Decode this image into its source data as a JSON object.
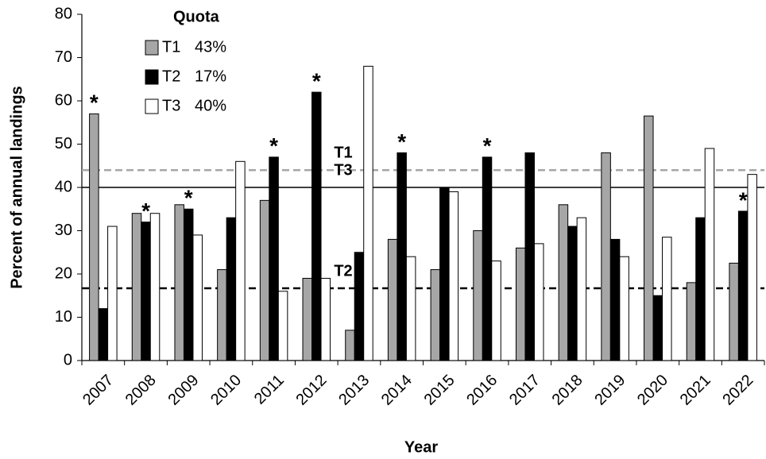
{
  "chart_data": {
    "type": "bar",
    "y_label": "Percent of annual landings",
    "x_label": "Year",
    "legend_title": "Quota",
    "categories": [
      "2007",
      "2008",
      "2009",
      "2010",
      "2011",
      "2012",
      "2013",
      "2014",
      "2015",
      "2016",
      "2017",
      "2018",
      "2019",
      "2020",
      "2021",
      "2022"
    ],
    "series": [
      {
        "name": "T1",
        "quota": "43%",
        "color": "#a6a6a6",
        "values": [
          57,
          34,
          36,
          21,
          37,
          19,
          7,
          28,
          21,
          30,
          26,
          36,
          48,
          56.5,
          18,
          22.5
        ],
        "annotations": [
          "*",
          null,
          null,
          null,
          null,
          null,
          null,
          null,
          null,
          null,
          null,
          null,
          null,
          null,
          null,
          null
        ]
      },
      {
        "name": "T2",
        "quota": "17%",
        "color": "#000000",
        "values": [
          12,
          32,
          35,
          33,
          47,
          62,
          25,
          48,
          40,
          47,
          48,
          31,
          28,
          15,
          33,
          34.5
        ],
        "annotations": [
          null,
          "*",
          "*",
          null,
          "*",
          "*",
          null,
          "*",
          null,
          "*",
          null,
          null,
          null,
          null,
          null,
          "*"
        ]
      },
      {
        "name": "T3",
        "quota": "40%",
        "color": "#ffffff",
        "values": [
          31,
          34,
          29,
          46,
          16,
          19,
          68,
          24,
          39,
          23,
          27,
          33,
          24,
          28.5,
          49,
          43
        ],
        "annotations": [
          null,
          null,
          null,
          null,
          null,
          null,
          null,
          null,
          null,
          null,
          null,
          null,
          null,
          null,
          null,
          null
        ]
      }
    ],
    "reference_lines": [
      {
        "label": "T1",
        "value": 44,
        "color": "#a6a6a6",
        "style": "dashed"
      },
      {
        "label": "T3",
        "value": 40,
        "color": "#000000",
        "style": "solid"
      },
      {
        "label": "T2",
        "value": 16.7,
        "color": "#000000",
        "style": "dashed"
      }
    ],
    "ylim": [
      0,
      80
    ],
    "yticks": [
      0,
      10,
      20,
      30,
      40,
      50,
      60,
      70,
      80
    ],
    "grid": false
  }
}
